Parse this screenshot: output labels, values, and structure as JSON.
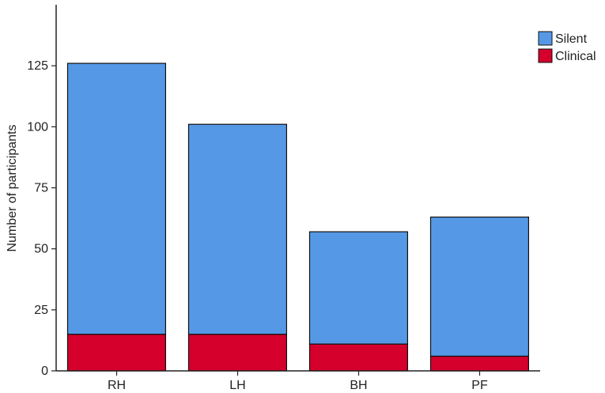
{
  "chart_data": {
    "type": "bar",
    "stacked": true,
    "categories": [
      "RH",
      "LH",
      "BH",
      "PF"
    ],
    "series": [
      {
        "name": "Clinical",
        "color": "#d5002c",
        "values": [
          15,
          15,
          11,
          6
        ]
      },
      {
        "name": "Silent",
        "color": "#5599e6",
        "values": [
          111,
          86,
          46,
          57
        ]
      }
    ],
    "xlabel": "",
    "ylabel": "Number of participants",
    "ylim": [
      0,
      150
    ],
    "yticks": [
      0,
      25,
      50,
      75,
      100,
      125
    ],
    "grid": false,
    "legend": {
      "position": "top-right",
      "entries": [
        {
          "label": "Silent",
          "color": "#5599e6"
        },
        {
          "label": "Clinical",
          "color": "#d5002c"
        }
      ]
    }
  }
}
